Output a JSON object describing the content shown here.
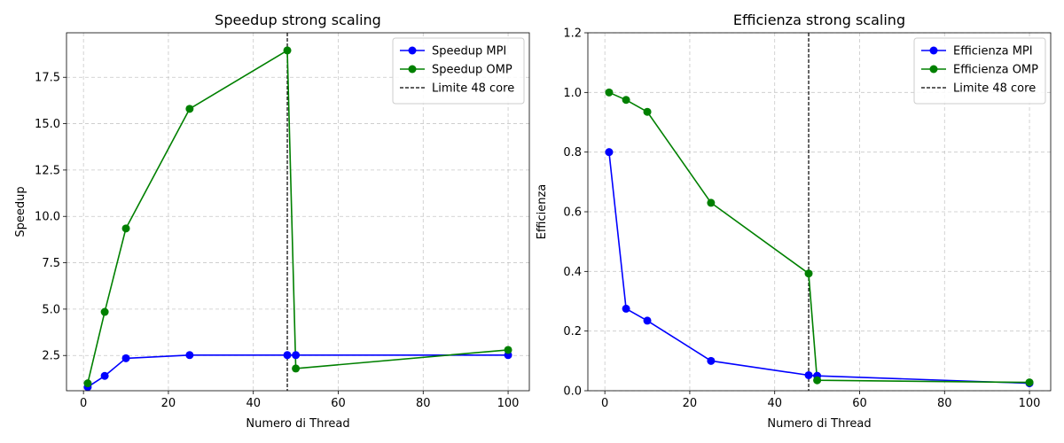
{
  "chart_data": [
    {
      "type": "line",
      "title": "Speedup strong scaling",
      "xlabel": "Numero di Thread",
      "ylabel": "Speedup",
      "xlim": [
        -4,
        105
      ],
      "ylim": [
        0.6,
        19.9
      ],
      "xticks": [
        0,
        20,
        40,
        60,
        80,
        100
      ],
      "yticks": [
        2.5,
        5.0,
        7.5,
        10.0,
        12.5,
        15.0,
        17.5
      ],
      "ytick_decimals": 1,
      "grid": true,
      "legend_position": "top-right",
      "series": [
        {
          "name": "Speedup MPI",
          "color": "#0000ff",
          "marker": "circle",
          "x": [
            1,
            5,
            10,
            25,
            48,
            50,
            100
          ],
          "y": [
            0.8,
            1.4,
            2.35,
            2.52,
            2.52,
            2.52,
            2.52
          ]
        },
        {
          "name": "Speedup OMP",
          "color": "#008000",
          "marker": "circle",
          "x": [
            1,
            5,
            10,
            25,
            48,
            50,
            100
          ],
          "y": [
            1.0,
            4.85,
            9.35,
            15.8,
            18.95,
            1.8,
            2.8
          ]
        }
      ],
      "vline": {
        "x": 48,
        "label": "Limite 48 core",
        "color": "#000000",
        "style": "dashed"
      }
    },
    {
      "type": "line",
      "title": "Efficienza strong scaling",
      "xlabel": "Numero di Thread",
      "ylabel": "Efficienza",
      "xlim": [
        -4,
        105
      ],
      "ylim": [
        0,
        1.2
      ],
      "xticks": [
        0,
        20,
        40,
        60,
        80,
        100
      ],
      "yticks": [
        0.0,
        0.2,
        0.4,
        0.6,
        0.8,
        1.0,
        1.2
      ],
      "ytick_decimals": 1,
      "grid": true,
      "legend_position": "top-right",
      "series": [
        {
          "name": "Efficienza MPI",
          "color": "#0000ff",
          "marker": "circle",
          "x": [
            1,
            5,
            10,
            25,
            48,
            50,
            100
          ],
          "y": [
            0.8,
            0.275,
            0.235,
            0.1,
            0.052,
            0.05,
            0.025
          ]
        },
        {
          "name": "Efficienza OMP",
          "color": "#008000",
          "marker": "circle",
          "x": [
            1,
            5,
            10,
            25,
            48,
            50,
            100
          ],
          "y": [
            1.0,
            0.975,
            0.935,
            0.63,
            0.393,
            0.035,
            0.028
          ]
        }
      ],
      "vline": {
        "x": 48,
        "label": "Limite 48 core",
        "color": "#000000",
        "style": "dashed"
      }
    }
  ]
}
